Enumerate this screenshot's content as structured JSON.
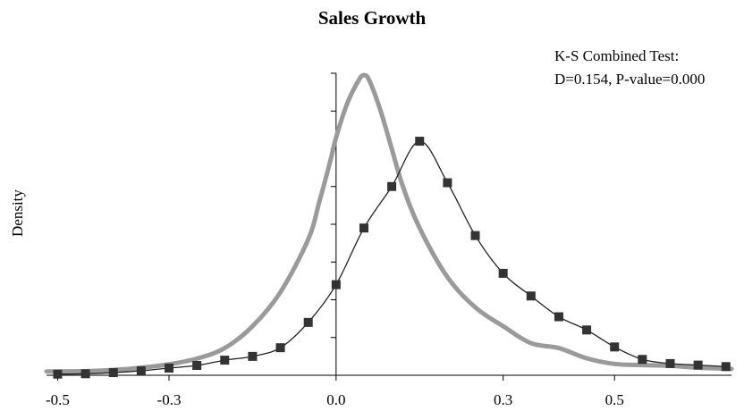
{
  "chart_data": {
    "type": "line",
    "title": "Sales Growth",
    "xlabel": "",
    "ylabel": "Density",
    "annotation": [
      "K-S Combined Test:",
      "D=0.154, P-value=0.000"
    ],
    "xlim": [
      -0.52,
      0.71
    ],
    "ylim": [
      0,
      8
    ],
    "x_ticks": [
      -0.5,
      -0.3,
      0.0,
      0.3,
      0.5
    ],
    "x_tick_labels": [
      "-0.5",
      "-0.3",
      "0.0",
      "0.3",
      "0.5"
    ],
    "y_ticks": [
      1,
      2,
      3,
      4,
      5,
      6,
      7,
      8
    ],
    "grid": false,
    "legend": "none",
    "series": [
      {
        "style": "thick-gray-line",
        "color": "#9a9a9a",
        "x": [
          -0.52,
          -0.45,
          -0.4,
          -0.35,
          -0.3,
          -0.25,
          -0.2,
          -0.15,
          -0.1,
          -0.05,
          -0.03,
          -0.01,
          0.0,
          0.02,
          0.04,
          0.05,
          0.06,
          0.08,
          0.1,
          0.12,
          0.15,
          0.2,
          0.25,
          0.3,
          0.35,
          0.4,
          0.45,
          0.5,
          0.55,
          0.6,
          0.65,
          0.71
        ],
        "y": [
          0.1,
          0.11,
          0.14,
          0.2,
          0.29,
          0.44,
          0.72,
          1.3,
          2.2,
          3.6,
          4.6,
          5.7,
          6.3,
          7.2,
          7.8,
          7.95,
          7.8,
          7.0,
          6.0,
          5.0,
          3.9,
          2.6,
          1.8,
          1.3,
          0.85,
          0.72,
          0.45,
          0.3,
          0.27,
          0.25,
          0.2,
          0.17
        ]
      },
      {
        "style": "thin-black-line-square-markers",
        "color": "#222222",
        "x": [
          -0.5,
          -0.45,
          -0.4,
          -0.35,
          -0.3,
          -0.25,
          -0.2,
          -0.15,
          -0.1,
          -0.05,
          0.0,
          0.05,
          0.1,
          0.15,
          0.2,
          0.25,
          0.3,
          0.35,
          0.4,
          0.45,
          0.5,
          0.55,
          0.6,
          0.65,
          0.7
        ],
        "y": [
          0.03,
          0.04,
          0.07,
          0.12,
          0.19,
          0.26,
          0.4,
          0.5,
          0.73,
          1.4,
          2.4,
          3.9,
          5.0,
          6.2,
          5.1,
          3.7,
          2.7,
          2.1,
          1.55,
          1.2,
          0.75,
          0.42,
          0.31,
          0.27,
          0.23
        ]
      }
    ]
  }
}
